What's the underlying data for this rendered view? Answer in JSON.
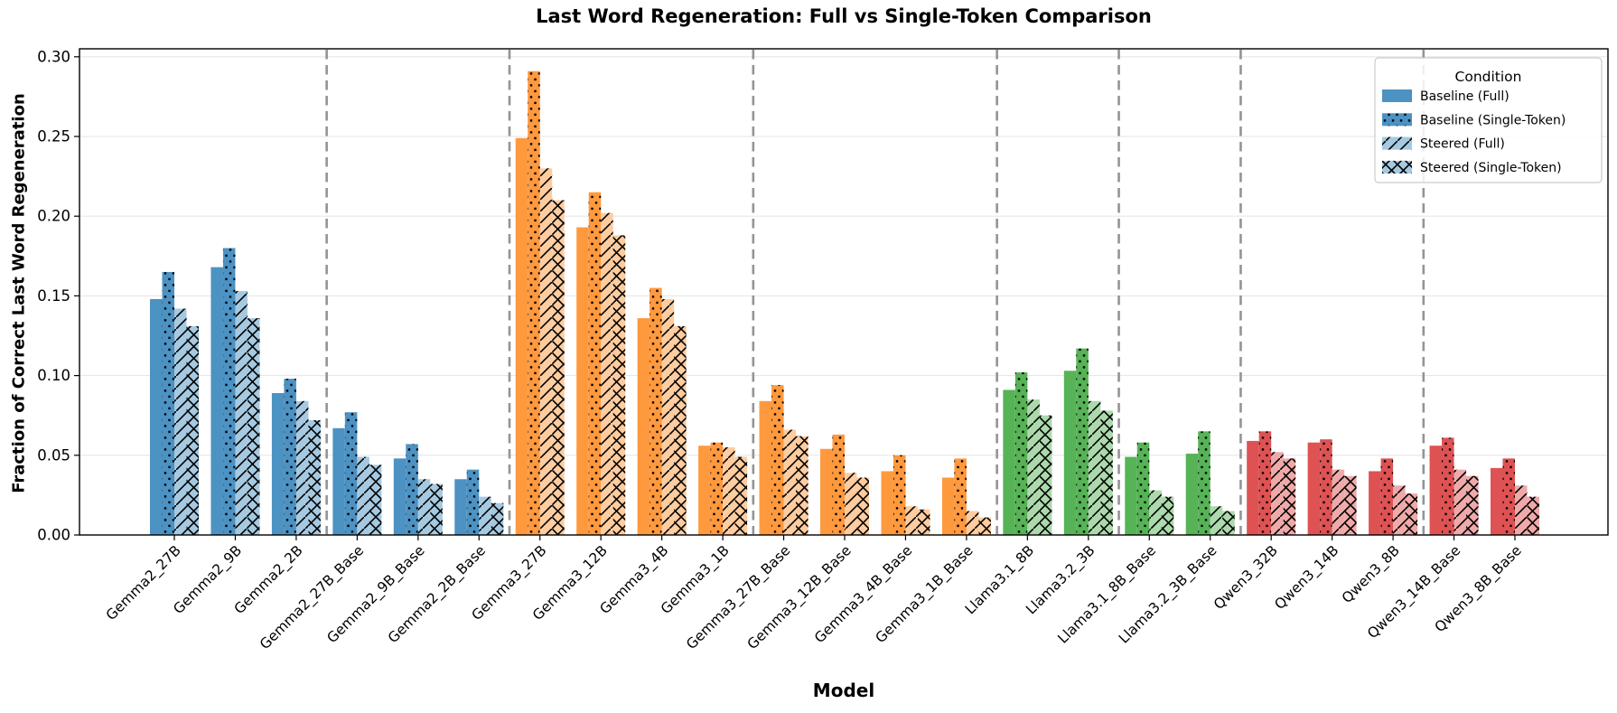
{
  "chart_data": {
    "type": "bar",
    "title": "Last Word Regeneration: Full vs Single-Token Comparison",
    "xlabel": "Model",
    "ylabel": "Fraction of Correct Last Word Regeneration",
    "ylim": [
      0,
      0.305
    ],
    "yticks": [
      0.0,
      0.05,
      0.1,
      0.15,
      0.2,
      0.25,
      0.3
    ],
    "grid": true,
    "legend_title": "Condition",
    "legend_position": "upper right",
    "categories": [
      "Gemma2_27B",
      "Gemma2_9B",
      "Gemma2_2B",
      "Gemma2_27B_Base",
      "Gemma2_9B_Base",
      "Gemma2_2B_Base",
      "Gemma3_27B",
      "Gemma3_12B",
      "Gemma3_4B",
      "Gemma3_1B",
      "Gemma3_27B_Base",
      "Gemma3_12B_Base",
      "Gemma3_4B_Base",
      "Gemma3_1B_Base",
      "Llama3.1_8B",
      "Llama3.2_3B",
      "Llama3.1_8B_Base",
      "Llama3.2_3B_Base",
      "Qwen3_32B",
      "Qwen3_14B",
      "Qwen3_8B",
      "Qwen3_14B_Base",
      "Qwen3_8B_Base"
    ],
    "series": [
      {
        "name": "Baseline (Full)",
        "shade": "baseline",
        "hatch": "none",
        "values": [
          0.148,
          0.168,
          0.089,
          0.067,
          0.048,
          0.035,
          0.249,
          0.193,
          0.136,
          0.056,
          0.084,
          0.054,
          0.04,
          0.036,
          0.091,
          0.103,
          0.049,
          0.051,
          0.059,
          0.058,
          0.04,
          0.056,
          0.042
        ]
      },
      {
        "name": "Baseline (Single-Token)",
        "shade": "baseline",
        "hatch": "dots",
        "values": [
          0.165,
          0.18,
          0.098,
          0.077,
          0.057,
          0.041,
          0.291,
          0.215,
          0.155,
          0.058,
          0.094,
          0.063,
          0.05,
          0.048,
          0.102,
          0.117,
          0.058,
          0.065,
          0.065,
          0.06,
          0.048,
          0.061,
          0.048
        ]
      },
      {
        "name": "Steered (Full)",
        "shade": "steered",
        "hatch": "diag",
        "values": [
          0.142,
          0.153,
          0.084,
          0.049,
          0.035,
          0.024,
          0.23,
          0.202,
          0.148,
          0.055,
          0.066,
          0.039,
          0.018,
          0.015,
          0.085,
          0.084,
          0.028,
          0.018,
          0.052,
          0.041,
          0.031,
          0.041,
          0.031
        ]
      },
      {
        "name": "Steered (Single-Token)",
        "shade": "steered",
        "hatch": "cross",
        "values": [
          0.131,
          0.136,
          0.072,
          0.044,
          0.032,
          0.02,
          0.21,
          0.188,
          0.131,
          0.049,
          0.062,
          0.036,
          0.016,
          0.011,
          0.075,
          0.078,
          0.024,
          0.015,
          0.048,
          0.037,
          0.026,
          0.037,
          0.024
        ]
      }
    ],
    "families": [
      {
        "name": "Gemma2",
        "models": 6,
        "color_baseline": "#4c92c3",
        "color_steered": "#a5c9e1"
      },
      {
        "name": "Gemma3",
        "models": 8,
        "color_baseline": "#ff993e",
        "color_steered": "#ffcc9f"
      },
      {
        "name": "Llama3",
        "models": 4,
        "color_baseline": "#56b356",
        "color_steered": "#abd9ab"
      },
      {
        "name": "Qwen3",
        "models": 5,
        "color_baseline": "#de5253",
        "color_steered": "#efa9a9"
      }
    ],
    "separators_after": [
      2,
      5,
      9,
      13,
      15,
      17,
      20
    ],
    "separator_color": "#949494",
    "grid_color": "#e7e7e7",
    "hatch_color": "#000000"
  }
}
